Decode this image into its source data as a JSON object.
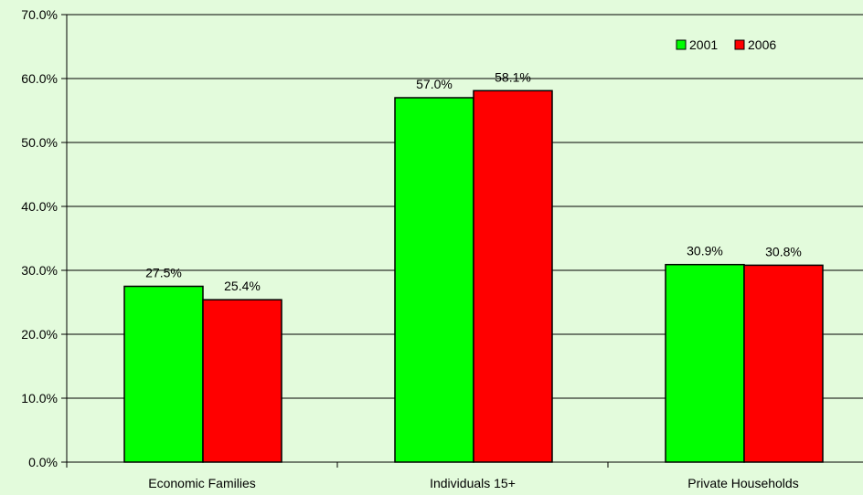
{
  "chart_data": {
    "type": "bar",
    "categories": [
      "Economic Families",
      "Individuals 15+",
      "Private Households"
    ],
    "series": [
      {
        "name": "2001",
        "values": [
          27.5,
          57.0,
          30.9
        ],
        "labels": [
          "27.5%",
          "57.0%",
          "30.9%"
        ],
        "color": "#00ff00"
      },
      {
        "name": "2006",
        "values": [
          25.4,
          58.1,
          30.8
        ],
        "labels": [
          "25.4%",
          "58.1%",
          "30.8%"
        ],
        "color": "#ff0000"
      }
    ],
    "yticks": [
      "0.0%",
      "10.0%",
      "20.0%",
      "30.0%",
      "40.0%",
      "50.0%",
      "60.0%",
      "70.0%"
    ],
    "ylim": [
      0,
      70
    ],
    "grid": true,
    "legend_position": "top-right",
    "colors": {
      "background": "#e3fbdc",
      "gridline": "#000000",
      "bar_outline": "#000000"
    }
  }
}
